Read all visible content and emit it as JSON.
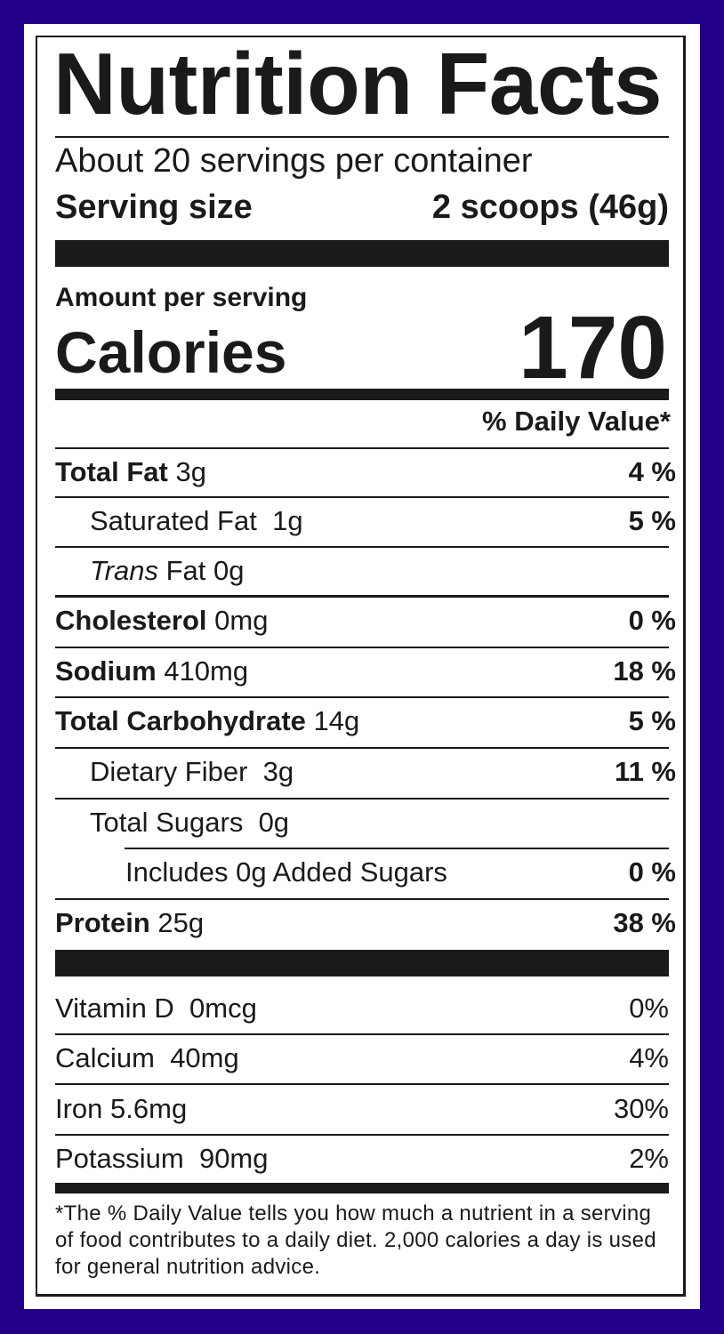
{
  "title": "Nutrition Facts",
  "servings_per_container": "About 20 servings per container",
  "serving_size": {
    "label": "Serving size",
    "value": "2 scoops (46g)"
  },
  "amount_per_serving": "Amount per serving",
  "calories": {
    "label": "Calories",
    "value": "170"
  },
  "dv_header": "% Daily Value*",
  "nutrients": [
    {
      "name": "Total Fat",
      "amount": "3g",
      "dv": "4 %"
    },
    {
      "name": "Saturated Fat",
      "amount": "1g",
      "dv": "5 %"
    },
    {
      "name": "Trans",
      "name_rest": "Fat",
      "amount": "0g",
      "dv": ""
    },
    {
      "name": "Cholesterol",
      "amount": "0mg",
      "dv": "0 %"
    },
    {
      "name": "Sodium",
      "amount": "410mg",
      "dv": "18 %"
    },
    {
      "name": "Total Carbohydrate",
      "amount": "14g",
      "dv": "5 %"
    },
    {
      "name": "Dietary Fiber",
      "amount": "3g",
      "dv": "11 %"
    },
    {
      "name": "Total Sugars",
      "amount": "0g",
      "dv": ""
    },
    {
      "name": "Includes 0g Added Sugars",
      "amount": "",
      "dv": "0 %"
    },
    {
      "name": "Protein",
      "amount": "25g",
      "dv": "38 %"
    }
  ],
  "vitamins": [
    {
      "label": "Vitamin D  0mcg",
      "dv": "0%"
    },
    {
      "label": "Calcium  40mg",
      "dv": "4%"
    },
    {
      "label": "Iron 5.6mg",
      "dv": "30%"
    },
    {
      "label": "Potassium  90mg",
      "dv": "2%"
    }
  ],
  "footnote": "*The % Daily Value tells you how much a nutrient in a serving of food contributes to a daily diet. 2,000 calories a day is used for general nutrition advice.",
  "colors": {
    "frame": "#230088",
    "ink": "#1a1a1a"
  }
}
